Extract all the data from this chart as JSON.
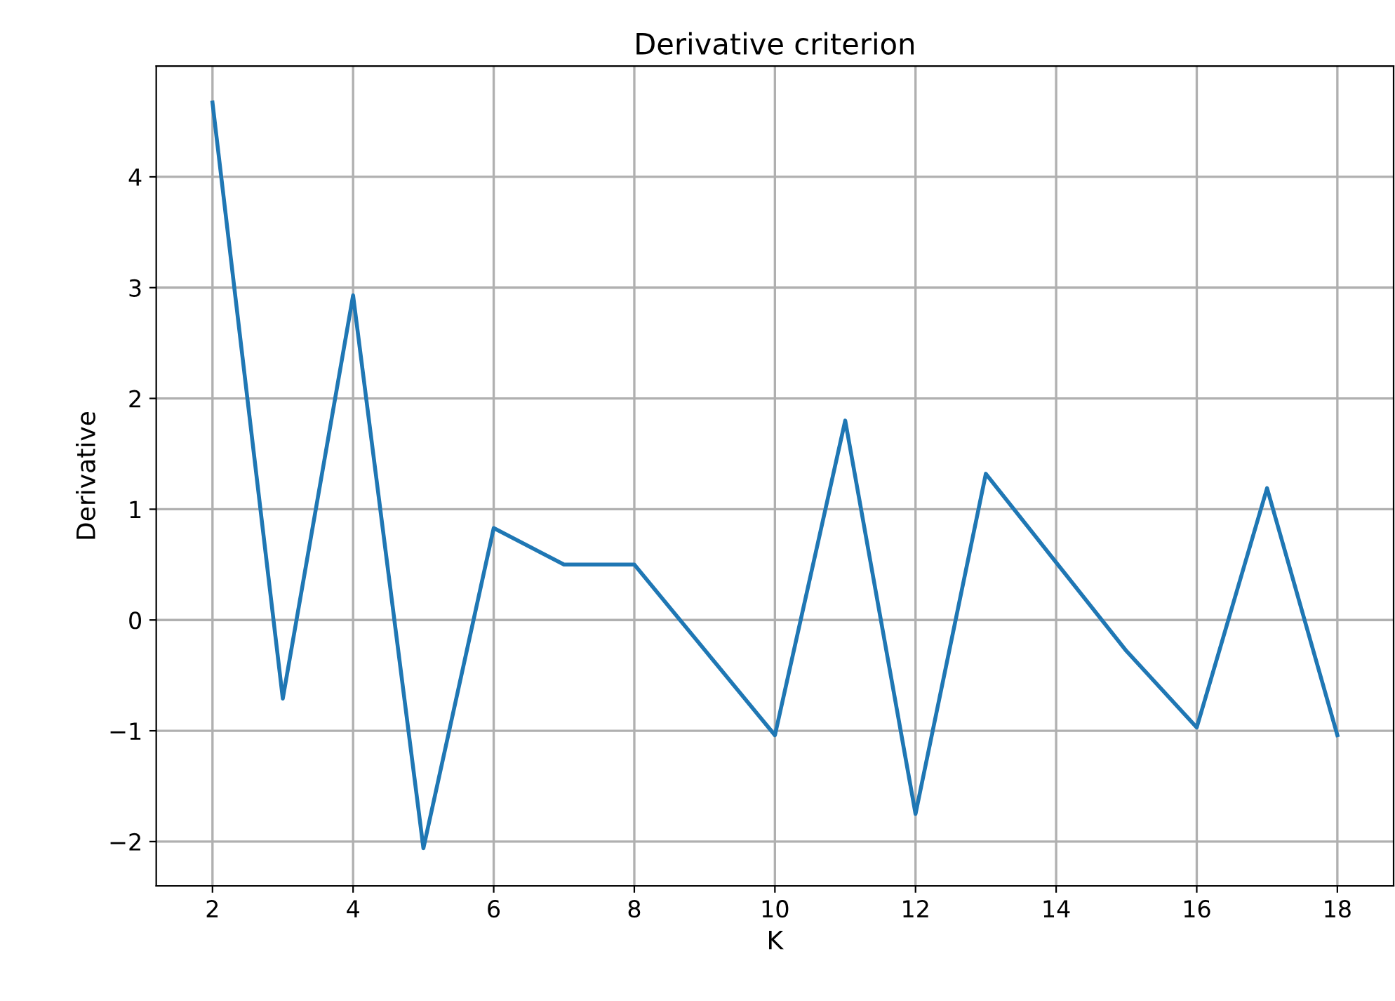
{
  "chart_data": {
    "type": "line",
    "title": "Derivative criterion",
    "xlabel": "K",
    "ylabel": "Derivative",
    "x": [
      2,
      3,
      4,
      5,
      6,
      7,
      8,
      9,
      10,
      11,
      12,
      13,
      14,
      15,
      16,
      17,
      18
    ],
    "series": [
      {
        "color": "#1f77b4",
        "values": [
          4.67,
          -0.71,
          2.93,
          -2.06,
          0.83,
          0.5,
          0.5,
          -0.27,
          -1.04,
          1.8,
          -1.75,
          1.32,
          0.52,
          -0.28,
          -0.97,
          1.19,
          -1.04
        ]
      }
    ],
    "xlim": [
      1.2,
      18.8
    ],
    "ylim": [
      -2.4,
      5.0
    ],
    "xticks": [
      2,
      4,
      6,
      8,
      10,
      12,
      14,
      16,
      18
    ],
    "yticks": [
      {
        "value": -2,
        "label": "−2"
      },
      {
        "value": -1,
        "label": "−1"
      },
      0,
      1,
      2,
      3,
      4
    ],
    "grid": true,
    "marker": "none",
    "line_style": "solid"
  }
}
